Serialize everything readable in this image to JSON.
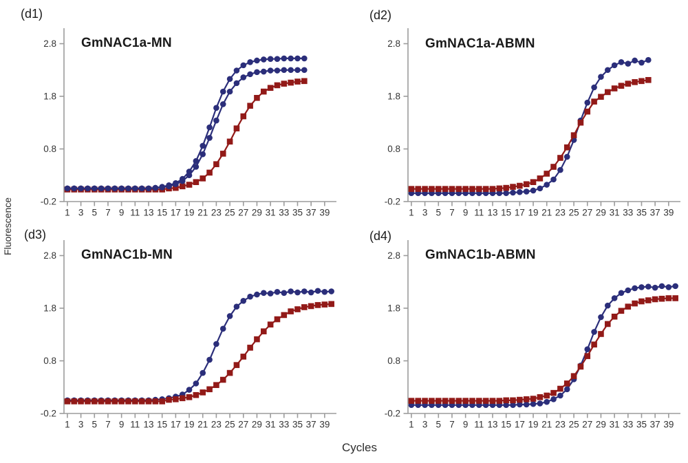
{
  "figure": {
    "ylabel": "Fluorescence",
    "xlabel": "Cycles"
  },
  "colors": {
    "series_blue": "#2b2e7a",
    "series_red": "#921a18",
    "axis": "#9b9b9b",
    "tick_text": "#343434",
    "title_text": "#1a1a1a"
  },
  "chart_data": [
    {
      "type": "line",
      "panel_label": "(d1)",
      "title": "GmNAC1a-MN",
      "xlabel": "Cycles",
      "ylabel": "Fluorescence",
      "grid": false,
      "legend": "none",
      "xlim": [
        0.5,
        40.9
      ],
      "ylim": [
        -0.2,
        3.1
      ],
      "x_ticks": [
        1,
        3,
        5,
        7,
        9,
        11,
        13,
        15,
        17,
        19,
        21,
        23,
        25,
        27,
        29,
        31,
        33,
        35,
        37,
        39
      ],
      "y_ticks": [
        2.8,
        1.8,
        0.8,
        -0.2
      ],
      "series": [
        {
          "name": "red-squares",
          "marker": "square",
          "color": "#921a18",
          "x_start": 1,
          "y": [
            0.03,
            0.03,
            0.03,
            0.03,
            0.03,
            0.03,
            0.03,
            0.03,
            0.03,
            0.03,
            0.03,
            0.03,
            0.03,
            0.03,
            0.03,
            0.05,
            0.06,
            0.09,
            0.12,
            0.17,
            0.24,
            0.35,
            0.51,
            0.71,
            0.94,
            1.19,
            1.42,
            1.62,
            1.77,
            1.89,
            1.96,
            2.01,
            2.04,
            2.06,
            2.08,
            2.09
          ]
        },
        {
          "name": "blue-circles-lower",
          "marker": "circle",
          "color": "#2b2e7a",
          "x_start": 1,
          "y": [
            0.05,
            0.05,
            0.05,
            0.05,
            0.05,
            0.05,
            0.05,
            0.05,
            0.05,
            0.05,
            0.05,
            0.05,
            0.05,
            0.06,
            0.07,
            0.09,
            0.13,
            0.19,
            0.3,
            0.46,
            0.7,
            1.01,
            1.34,
            1.65,
            1.89,
            2.05,
            2.16,
            2.22,
            2.26,
            2.27,
            2.29,
            2.29,
            2.3,
            2.3,
            2.3,
            2.3
          ]
        },
        {
          "name": "blue-circles-upper",
          "marker": "circle",
          "color": "#2b2e7a",
          "x_start": 1,
          "y": [
            0.05,
            0.05,
            0.05,
            0.05,
            0.05,
            0.05,
            0.05,
            0.05,
            0.05,
            0.05,
            0.05,
            0.05,
            0.05,
            0.06,
            0.08,
            0.11,
            0.15,
            0.23,
            0.37,
            0.57,
            0.86,
            1.21,
            1.58,
            1.89,
            2.13,
            2.29,
            2.39,
            2.45,
            2.48,
            2.5,
            2.51,
            2.51,
            2.52,
            2.52,
            2.52,
            2.52
          ]
        }
      ]
    },
    {
      "type": "line",
      "panel_label": "(d2)",
      "title": "GmNAC1a-ABMN",
      "xlabel": "Cycles",
      "ylabel": "Fluorescence",
      "grid": false,
      "legend": "none",
      "xlim": [
        0.5,
        40.9
      ],
      "ylim": [
        -0.2,
        3.1
      ],
      "x_ticks": [
        1,
        3,
        5,
        7,
        9,
        11,
        13,
        15,
        17,
        19,
        21,
        23,
        25,
        27,
        29,
        31,
        33,
        35,
        37,
        39
      ],
      "y_ticks": [
        2.8,
        1.8,
        0.8,
        -0.2
      ],
      "series": [
        {
          "name": "blue-circles",
          "marker": "circle",
          "color": "#2b2e7a",
          "x_start": 1,
          "y": [
            -0.04,
            -0.04,
            -0.04,
            -0.04,
            -0.04,
            -0.04,
            -0.04,
            -0.04,
            -0.04,
            -0.04,
            -0.04,
            -0.04,
            -0.04,
            -0.04,
            -0.04,
            -0.03,
            -0.02,
            -0.01,
            0.01,
            0.05,
            0.12,
            0.22,
            0.4,
            0.65,
            0.97,
            1.34,
            1.68,
            1.97,
            2.17,
            2.3,
            2.39,
            2.45,
            2.42,
            2.48,
            2.44,
            2.49
          ]
        },
        {
          "name": "red-squares",
          "marker": "square",
          "color": "#921a18",
          "x_start": 1,
          "y": [
            0.04,
            0.04,
            0.04,
            0.04,
            0.04,
            0.04,
            0.04,
            0.04,
            0.04,
            0.04,
            0.04,
            0.04,
            0.04,
            0.05,
            0.06,
            0.08,
            0.1,
            0.13,
            0.17,
            0.24,
            0.33,
            0.46,
            0.63,
            0.83,
            1.06,
            1.3,
            1.51,
            1.7,
            1.79,
            1.88,
            1.95,
            2.0,
            2.04,
            2.07,
            2.09,
            2.11
          ]
        }
      ]
    },
    {
      "type": "line",
      "panel_label": "(d3)",
      "title": "GmNAC1b-MN",
      "xlabel": "Cycles",
      "ylabel": "Fluorescence",
      "grid": false,
      "legend": "none",
      "xlim": [
        0.5,
        40.9
      ],
      "ylim": [
        -0.2,
        3.1
      ],
      "x_ticks": [
        1,
        3,
        5,
        7,
        9,
        11,
        13,
        15,
        17,
        19,
        21,
        23,
        25,
        27,
        29,
        31,
        33,
        35,
        37,
        39
      ],
      "y_ticks": [
        2.8,
        1.8,
        0.8,
        -0.2
      ],
      "series": [
        {
          "name": "blue-circles",
          "marker": "circle",
          "color": "#2b2e7a",
          "x_start": 1,
          "y": [
            0.05,
            0.05,
            0.05,
            0.05,
            0.05,
            0.05,
            0.05,
            0.05,
            0.05,
            0.05,
            0.05,
            0.05,
            0.05,
            0.06,
            0.07,
            0.09,
            0.12,
            0.16,
            0.25,
            0.37,
            0.57,
            0.82,
            1.12,
            1.41,
            1.65,
            1.83,
            1.94,
            2.02,
            2.06,
            2.09,
            2.08,
            2.11,
            2.09,
            2.12,
            2.1,
            2.12,
            2.1,
            2.13,
            2.11,
            2.12
          ]
        },
        {
          "name": "red-squares",
          "marker": "square",
          "color": "#921a18",
          "x_start": 1,
          "y": [
            0.03,
            0.03,
            0.03,
            0.03,
            0.03,
            0.03,
            0.03,
            0.03,
            0.03,
            0.03,
            0.03,
            0.03,
            0.03,
            0.03,
            0.03,
            0.06,
            0.07,
            0.09,
            0.11,
            0.15,
            0.2,
            0.26,
            0.34,
            0.44,
            0.57,
            0.72,
            0.88,
            1.05,
            1.21,
            1.36,
            1.49,
            1.59,
            1.67,
            1.74,
            1.78,
            1.82,
            1.84,
            1.86,
            1.87,
            1.88
          ]
        }
      ]
    },
    {
      "type": "line",
      "panel_label": "(d4)",
      "title": "GmNAC1b-ABMN",
      "xlabel": "Cycles",
      "ylabel": "Fluorescence",
      "grid": false,
      "legend": "none",
      "xlim": [
        0.5,
        40.9
      ],
      "ylim": [
        -0.2,
        3.1
      ],
      "x_ticks": [
        1,
        3,
        5,
        7,
        9,
        11,
        13,
        15,
        17,
        19,
        21,
        23,
        25,
        27,
        29,
        31,
        33,
        35,
        37,
        39
      ],
      "y_ticks": [
        2.8,
        1.8,
        0.8,
        -0.2
      ],
      "series": [
        {
          "name": "blue-circles",
          "marker": "circle",
          "color": "#2b2e7a",
          "x_start": 1,
          "y": [
            -0.04,
            -0.04,
            -0.04,
            -0.04,
            -0.04,
            -0.04,
            -0.04,
            -0.04,
            -0.04,
            -0.04,
            -0.04,
            -0.04,
            -0.04,
            -0.04,
            -0.04,
            -0.04,
            -0.03,
            -0.03,
            -0.02,
            -0.01,
            0.02,
            0.07,
            0.14,
            0.26,
            0.45,
            0.71,
            1.02,
            1.35,
            1.63,
            1.85,
            1.99,
            2.09,
            2.14,
            2.18,
            2.2,
            2.21,
            2.19,
            2.22,
            2.2,
            2.22
          ]
        },
        {
          "name": "red-squares",
          "marker": "square",
          "color": "#921a18",
          "x_start": 1,
          "y": [
            0.04,
            0.04,
            0.04,
            0.04,
            0.04,
            0.04,
            0.04,
            0.04,
            0.04,
            0.04,
            0.04,
            0.04,
            0.04,
            0.04,
            0.05,
            0.05,
            0.06,
            0.07,
            0.08,
            0.11,
            0.14,
            0.19,
            0.27,
            0.37,
            0.51,
            0.69,
            0.89,
            1.11,
            1.31,
            1.5,
            1.64,
            1.75,
            1.83,
            1.89,
            1.93,
            1.95,
            1.97,
            1.98,
            1.99,
            1.99
          ]
        }
      ]
    }
  ]
}
